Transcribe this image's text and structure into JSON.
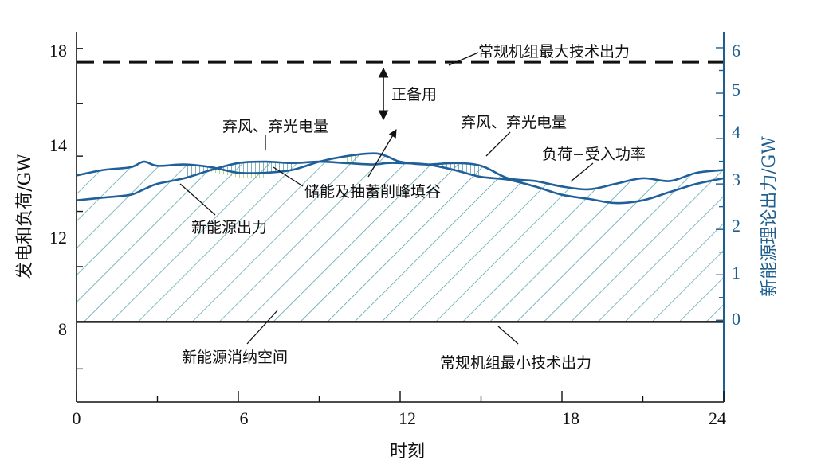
{
  "chart_data": {
    "type": "line",
    "x": [
      0,
      1,
      2,
      2.5,
      3,
      4,
      5,
      6,
      7,
      8,
      9,
      10,
      11,
      11.5,
      12,
      13,
      14,
      15,
      16,
      17,
      18,
      19,
      20,
      21,
      22,
      23,
      24
    ],
    "xlabel": "时刻",
    "ylabel_left": "发电和负荷/GW",
    "ylabel_right": "新能源理论出力/GW",
    "xlim": [
      0,
      24
    ],
    "ylim_left": [
      5.3,
      18.7
    ],
    "ylim_right": [
      -1.8,
      6.35
    ],
    "xticks": [
      "0",
      "6",
      "12",
      "18",
      "24"
    ],
    "yticks_left": [
      "8",
      "12",
      "14",
      "18"
    ],
    "yticks_right": [
      "0",
      "1",
      "2",
      "3",
      "4",
      "5",
      "6"
    ],
    "series": [
      {
        "key": "load",
        "values": [
          13.5,
          13.7,
          13.8,
          14.0,
          13.85,
          13.9,
          13.8,
          13.6,
          13.6,
          13.7,
          14.0,
          14.2,
          14.3,
          14.2,
          14.0,
          13.9,
          13.95,
          13.85,
          13.4,
          13.3,
          13.1,
          13.0,
          13.2,
          13.4,
          13.3,
          13.6,
          13.7
        ]
      },
      {
        "key": "renewable",
        "values": [
          12.6,
          12.7,
          12.8,
          13.0,
          13.2,
          13.4,
          13.7,
          13.95,
          14.0,
          13.95,
          14.0,
          13.95,
          13.9,
          13.95,
          13.95,
          13.9,
          13.7,
          13.45,
          13.35,
          13.1,
          12.8,
          12.65,
          12.5,
          12.6,
          12.9,
          13.2,
          13.4
        ]
      }
    ],
    "reference_lines": [
      {
        "value": 17.6,
        "style": "dashed",
        "label": "常规机组最大技术出力"
      },
      {
        "value": 8.2,
        "style": "solid",
        "label": "常规机组最小技术出力"
      }
    ],
    "annotations": [
      {
        "id": "reserve",
        "text": "正备用"
      },
      {
        "id": "curtail1",
        "text": "弃风、弃光电量"
      },
      {
        "id": "curtail2",
        "text": "弃风、弃光电量"
      },
      {
        "id": "storage",
        "text": "储能及抽蓄削峰填谷"
      },
      {
        "id": "load_label",
        "text": "负荷−受入功率"
      },
      {
        "id": "re_label",
        "text": "新能源出力"
      },
      {
        "id": "space_label",
        "text": "新能源消纳空间"
      }
    ],
    "colors": {
      "line": "#1f5f9a",
      "hatch": "#4a9aa6",
      "storage_hatch": "#8fbf3a",
      "right_axis": "#1f5f8f",
      "reference": "#111111"
    }
  }
}
